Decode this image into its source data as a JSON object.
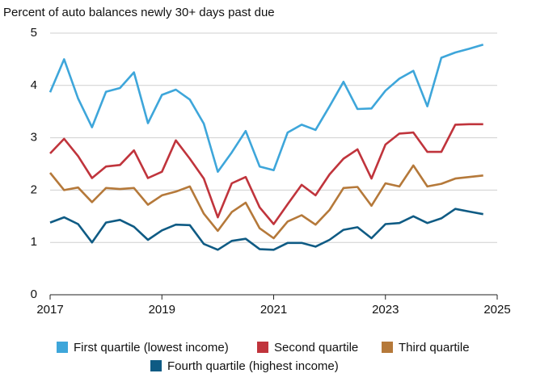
{
  "chart_data": {
    "type": "line",
    "title": "Percent of auto balances newly 30+ days past due",
    "x": [
      2017,
      2017.25,
      2017.5,
      2017.75,
      2018,
      2018.25,
      2018.5,
      2018.75,
      2019,
      2019.25,
      2019.5,
      2019.75,
      2020,
      2020.25,
      2020.5,
      2020.75,
      2021,
      2021.25,
      2021.5,
      2021.75,
      2022,
      2022.25,
      2022.5,
      2022.75,
      2023,
      2023.25,
      2023.5,
      2023.75,
      2024,
      2024.25,
      2024.5,
      2024.75
    ],
    "xlim": [
      2017,
      2025
    ],
    "xticks": [
      2017,
      2019,
      2021,
      2023,
      2025
    ],
    "ylim": [
      0,
      5
    ],
    "yticks": [
      0,
      1,
      2,
      3,
      4,
      5
    ],
    "grid": true,
    "series": [
      {
        "name": "First quartile (lowest income)",
        "color": "#3ea6da",
        "values": [
          3.87,
          4.5,
          3.75,
          3.2,
          3.88,
          3.95,
          4.25,
          3.28,
          3.82,
          3.92,
          3.73,
          3.27,
          2.35,
          2.72,
          3.13,
          2.45,
          2.38,
          3.1,
          3.25,
          3.15,
          3.6,
          4.07,
          3.55,
          3.56,
          3.9,
          4.13,
          4.28,
          3.6,
          4.53,
          4.63,
          4.7,
          4.78
        ]
      },
      {
        "name": "Second quartile",
        "color": "#c0343c",
        "values": [
          2.7,
          2.98,
          2.65,
          2.23,
          2.45,
          2.48,
          2.76,
          2.23,
          2.35,
          2.95,
          2.6,
          2.22,
          1.48,
          2.13,
          2.25,
          1.67,
          1.35,
          1.73,
          2.1,
          1.9,
          2.3,
          2.6,
          2.78,
          2.22,
          2.87,
          3.08,
          3.1,
          2.73,
          2.73,
          3.25,
          3.26,
          3.26
        ]
      },
      {
        "name": "Third quartile",
        "color": "#b5793a",
        "values": [
          2.33,
          2.0,
          2.05,
          1.77,
          2.04,
          2.02,
          2.04,
          1.72,
          1.9,
          1.97,
          2.07,
          1.55,
          1.22,
          1.58,
          1.76,
          1.27,
          1.08,
          1.4,
          1.52,
          1.34,
          1.62,
          2.04,
          2.06,
          1.7,
          2.13,
          2.07,
          2.47,
          2.07,
          2.12,
          2.22,
          2.25,
          2.28
        ]
      },
      {
        "name": "Fourth quartile (highest income)",
        "color": "#0f5b84",
        "values": [
          1.38,
          1.48,
          1.35,
          1.0,
          1.38,
          1.43,
          1.3,
          1.05,
          1.23,
          1.34,
          1.33,
          0.97,
          0.86,
          1.03,
          1.07,
          0.87,
          0.86,
          0.99,
          0.99,
          0.92,
          1.05,
          1.24,
          1.29,
          1.08,
          1.35,
          1.37,
          1.5,
          1.37,
          1.46,
          1.64,
          1.59,
          1.54
        ]
      }
    ]
  }
}
